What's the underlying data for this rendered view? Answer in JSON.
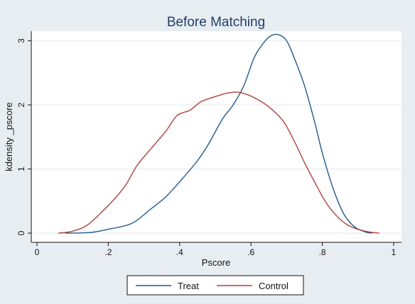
{
  "chart_data": {
    "type": "line",
    "title": "Before Matching",
    "xlabel": "Pscore",
    "ylabel": "kdensity _pscore",
    "xlim": [
      0,
      1
    ],
    "ylim": [
      0,
      3.15
    ],
    "x_ticks": [
      0,
      0.2,
      0.4,
      0.6,
      0.8,
      1
    ],
    "x_tick_labels": [
      "0",
      ".2",
      ".4",
      ".6",
      ".8",
      "1"
    ],
    "y_ticks": [
      0,
      1,
      2,
      3
    ],
    "y_tick_labels": [
      "0",
      "1",
      "2",
      "3"
    ],
    "grid": true,
    "legend_position": "bottom",
    "colors": {
      "plot_bg": "#ffffff",
      "outer_bg": "#e8edf1",
      "grid": "#e3e8ec",
      "title": "#1f3f6b"
    },
    "series": [
      {
        "name": "Treat",
        "color": "#1f5a8f",
        "points": [
          [
            0.08,
            0.0
          ],
          [
            0.15,
            0.01
          ],
          [
            0.2,
            0.06
          ],
          [
            0.25,
            0.12
          ],
          [
            0.28,
            0.2
          ],
          [
            0.32,
            0.38
          ],
          [
            0.36,
            0.56
          ],
          [
            0.4,
            0.8
          ],
          [
            0.45,
            1.13
          ],
          [
            0.48,
            1.38
          ],
          [
            0.52,
            1.78
          ],
          [
            0.55,
            2.0
          ],
          [
            0.58,
            2.3
          ],
          [
            0.61,
            2.75
          ],
          [
            0.64,
            3.0
          ],
          [
            0.66,
            3.09
          ],
          [
            0.68,
            3.09
          ],
          [
            0.7,
            3.0
          ],
          [
            0.72,
            2.75
          ],
          [
            0.75,
            2.3
          ],
          [
            0.78,
            1.7
          ],
          [
            0.8,
            1.25
          ],
          [
            0.83,
            0.7
          ],
          [
            0.86,
            0.3
          ],
          [
            0.89,
            0.1
          ],
          [
            0.92,
            0.02
          ],
          [
            0.94,
            0.0
          ]
        ]
      },
      {
        "name": "Control",
        "color": "#b0413e",
        "points": [
          [
            0.06,
            0.0
          ],
          [
            0.1,
            0.03
          ],
          [
            0.14,
            0.12
          ],
          [
            0.18,
            0.32
          ],
          [
            0.22,
            0.55
          ],
          [
            0.25,
            0.76
          ],
          [
            0.28,
            1.05
          ],
          [
            0.32,
            1.32
          ],
          [
            0.36,
            1.58
          ],
          [
            0.39,
            1.82
          ],
          [
            0.41,
            1.88
          ],
          [
            0.43,
            1.92
          ],
          [
            0.46,
            2.05
          ],
          [
            0.5,
            2.13
          ],
          [
            0.53,
            2.18
          ],
          [
            0.56,
            2.2
          ],
          [
            0.59,
            2.16
          ],
          [
            0.62,
            2.08
          ],
          [
            0.65,
            1.97
          ],
          [
            0.69,
            1.75
          ],
          [
            0.72,
            1.45
          ],
          [
            0.75,
            1.1
          ],
          [
            0.78,
            0.78
          ],
          [
            0.81,
            0.48
          ],
          [
            0.84,
            0.27
          ],
          [
            0.87,
            0.13
          ],
          [
            0.9,
            0.06
          ],
          [
            0.93,
            0.02
          ],
          [
            0.96,
            0.0
          ]
        ]
      }
    ]
  }
}
